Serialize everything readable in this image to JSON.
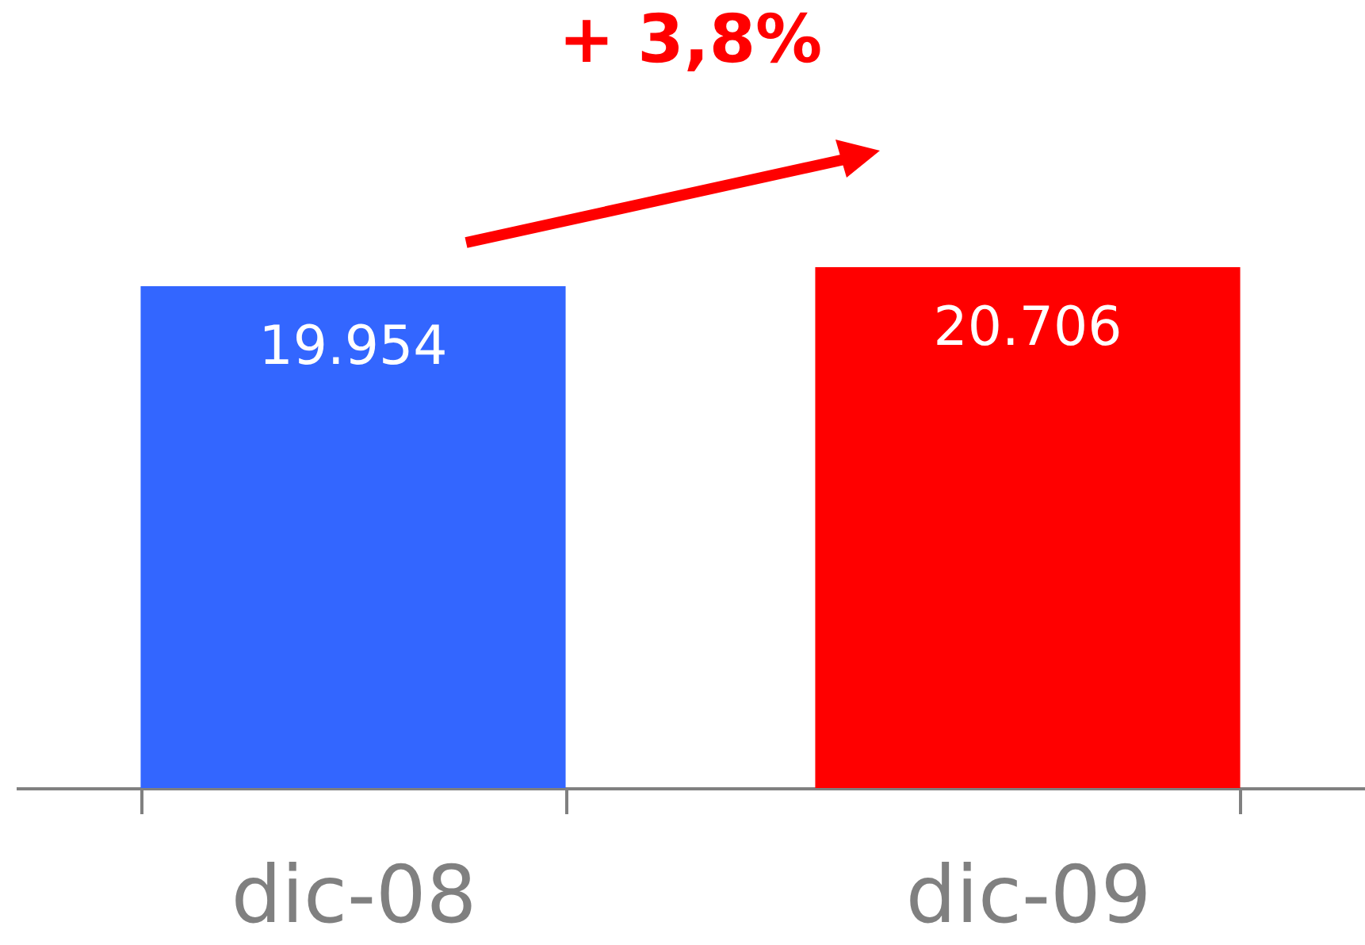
{
  "chart_data": {
    "type": "bar",
    "categories": [
      "dic-08",
      "dic-09"
    ],
    "values": [
      19954,
      20706
    ],
    "colors": [
      "#3366ff",
      "#ff0000"
    ],
    "value_labels": [
      "19.954",
      "20.706"
    ],
    "annotations": [
      "+ 3,8%"
    ],
    "grid": false,
    "legend": false
  }
}
